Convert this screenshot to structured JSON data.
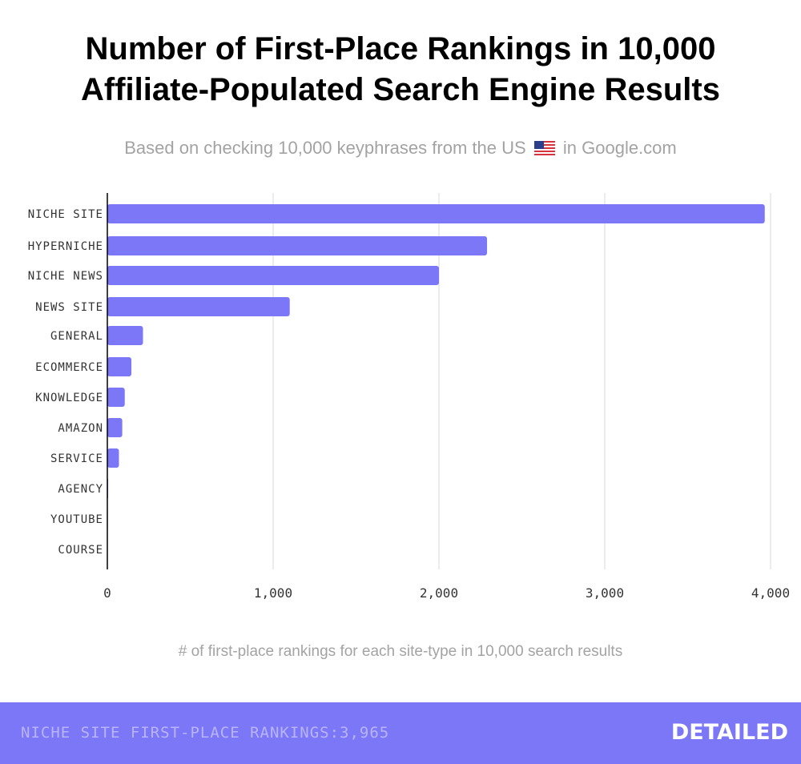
{
  "title_line1": "Number of First-Place Rankings in 10,000",
  "title_line2": "Affiliate-Populated Search Engine Results",
  "subtitle_before": "Based on checking 10,000 keyphrases from the US",
  "subtitle_after": "in Google.com",
  "flag_icon": "us-flag-icon",
  "footer": {
    "stat": "NICHE SITE FIRST-PLACE RANKINGS:3,965",
    "logo": "DETAILED"
  },
  "colors": {
    "bar": "#7b77f7",
    "footer_bg": "#7b77f7",
    "grid": "#e6e6e6",
    "muted_text": "#a3a3a3"
  },
  "chart_data": {
    "type": "bar",
    "orientation": "horizontal",
    "categories": [
      "NICHE SITE",
      "HYPERNICHE",
      "NICHE NEWS",
      "NEWS SITE",
      "GENERAL",
      "ECOMMERCE",
      "KNOWLEDGE",
      "AMAZON",
      "SERVICE",
      "AGENCY",
      "YOUTUBE",
      "COURSE"
    ],
    "values": [
      3965,
      2290,
      2000,
      1100,
      215,
      145,
      105,
      90,
      70,
      5,
      3,
      0
    ],
    "xlabel": "# of first-place rankings for each site-type in 10,000 search results",
    "xlim": [
      0,
      4000
    ],
    "xticks": [
      0,
      1000,
      2000,
      3000,
      4000
    ],
    "xtick_labels": [
      "0",
      "1,000",
      "2,000",
      "3,000",
      "4,000"
    ],
    "grid": true
  }
}
